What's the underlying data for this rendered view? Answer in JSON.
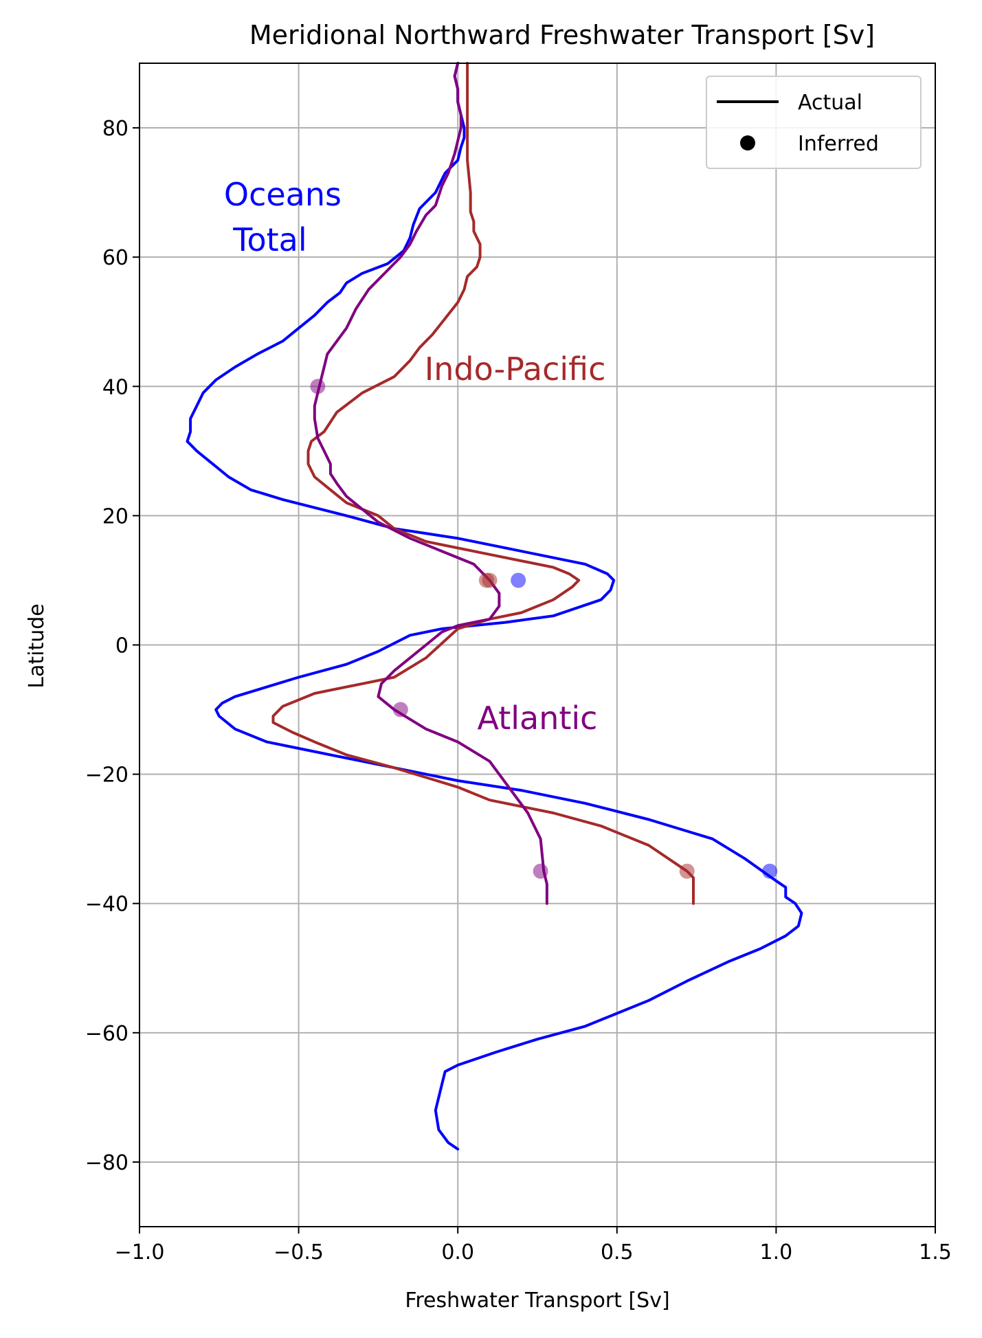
{
  "chart_data": {
    "type": "line",
    "title": "Meridional Northward Freshwater Transport [Sv]",
    "xlabel": "Freshwater Transport [Sv]",
    "ylabel": "Latitude",
    "xlim": [
      -1.0,
      1.5
    ],
    "ylim": [
      -90,
      90
    ],
    "xticks": [
      -1.0,
      -0.5,
      0.0,
      0.5,
      1.0,
      1.5
    ],
    "xtick_labels": [
      "−1.0",
      "−0.5",
      "0.0",
      "0.5",
      "1.0",
      "1.5"
    ],
    "yticks": [
      -80,
      -60,
      -40,
      -20,
      0,
      20,
      40,
      60,
      80
    ],
    "ytick_labels": [
      "−80",
      "−60",
      "−40",
      "−20",
      "0",
      "20",
      "40",
      "60",
      "80"
    ],
    "grid": true,
    "legend": {
      "placement": "top-right",
      "entries": [
        {
          "label": "Actual",
          "marker": "line"
        },
        {
          "label": "Inferred",
          "marker": "dot"
        }
      ]
    },
    "annotations": [
      {
        "text": "Oceans",
        "x": -0.55,
        "y": 68,
        "color": "#0000ff"
      },
      {
        "text": "Total",
        "x": -0.59,
        "y": 61,
        "color": "#0000ff"
      },
      {
        "text": "Indo-Pacific",
        "x": 0.18,
        "y": 41,
        "color": "#a52a2a"
      },
      {
        "text": "Atlantic",
        "x": 0.25,
        "y": -13,
        "color": "#800080"
      }
    ],
    "series": [
      {
        "color": "#0000ff",
        "points": [
          [
            0.0,
            -78
          ],
          [
            -0.03,
            -77
          ],
          [
            -0.06,
            -75
          ],
          [
            -0.07,
            -72
          ],
          [
            -0.06,
            -70
          ],
          [
            -0.05,
            -68
          ],
          [
            -0.04,
            -66
          ],
          [
            0.0,
            -65
          ],
          [
            0.12,
            -63
          ],
          [
            0.25,
            -61
          ],
          [
            0.4,
            -59
          ],
          [
            0.5,
            -57
          ],
          [
            0.6,
            -55
          ],
          [
            0.72,
            -52
          ],
          [
            0.85,
            -49
          ],
          [
            0.95,
            -47
          ],
          [
            1.03,
            -45
          ],
          [
            1.07,
            -43.5
          ],
          [
            1.08,
            -41.5
          ],
          [
            1.06,
            -40
          ],
          [
            1.03,
            -39
          ],
          [
            1.03,
            -37.5
          ],
          [
            1.0,
            -36.5
          ],
          [
            0.9,
            -33
          ],
          [
            0.8,
            -30
          ],
          [
            0.6,
            -27
          ],
          [
            0.4,
            -24.5
          ],
          [
            0.2,
            -22.5
          ],
          [
            0.0,
            -21
          ],
          [
            -0.2,
            -19
          ],
          [
            -0.4,
            -17
          ],
          [
            -0.5,
            -16
          ],
          [
            -0.6,
            -15
          ],
          [
            -0.7,
            -13
          ],
          [
            -0.75,
            -11
          ],
          [
            -0.76,
            -10
          ],
          [
            -0.74,
            -9
          ],
          [
            -0.7,
            -8
          ],
          [
            -0.6,
            -6.5
          ],
          [
            -0.5,
            -5
          ],
          [
            -0.35,
            -3
          ],
          [
            -0.25,
            -1
          ],
          [
            -0.15,
            1.5
          ],
          [
            -0.05,
            2.5
          ],
          [
            0.05,
            3
          ],
          [
            0.15,
            3.5
          ],
          [
            0.3,
            4.5
          ],
          [
            0.45,
            7
          ],
          [
            0.48,
            8.5
          ],
          [
            0.49,
            10
          ],
          [
            0.47,
            11
          ],
          [
            0.4,
            12.5
          ],
          [
            0.2,
            14.5
          ],
          [
            0.0,
            16.5
          ],
          [
            -0.2,
            18
          ],
          [
            -0.35,
            20
          ],
          [
            -0.55,
            22.5
          ],
          [
            -0.65,
            24
          ],
          [
            -0.72,
            26
          ],
          [
            -0.77,
            28
          ],
          [
            -0.82,
            30
          ],
          [
            -0.85,
            31.5
          ],
          [
            -0.84,
            33
          ],
          [
            -0.84,
            35
          ],
          [
            -0.82,
            37
          ],
          [
            -0.8,
            39
          ],
          [
            -0.76,
            41
          ],
          [
            -0.7,
            43
          ],
          [
            -0.63,
            45
          ],
          [
            -0.55,
            47
          ],
          [
            -0.5,
            49
          ],
          [
            -0.45,
            51
          ],
          [
            -0.41,
            53
          ],
          [
            -0.37,
            54.5
          ],
          [
            -0.35,
            56
          ],
          [
            -0.3,
            57.5
          ],
          [
            -0.22,
            59
          ],
          [
            -0.17,
            61
          ],
          [
            -0.15,
            63
          ],
          [
            -0.14,
            65
          ],
          [
            -0.12,
            67.5
          ],
          [
            -0.07,
            70
          ],
          [
            -0.04,
            73
          ],
          [
            0.0,
            75
          ],
          [
            0.01,
            77
          ],
          [
            0.02,
            78.5
          ],
          [
            0.02,
            80
          ],
          [
            0.01,
            82
          ],
          [
            0.0,
            84
          ],
          [
            0.0,
            86
          ],
          [
            -0.01,
            88
          ],
          [
            0.0,
            90
          ]
        ]
      },
      {
        "color": "#a52a2a",
        "points": [
          [
            0.74,
            -40
          ],
          [
            0.74,
            -36
          ],
          [
            0.72,
            -35
          ],
          [
            0.6,
            -31
          ],
          [
            0.45,
            -28
          ],
          [
            0.3,
            -26
          ],
          [
            0.1,
            -24
          ],
          [
            0.0,
            -22
          ],
          [
            -0.2,
            -19
          ],
          [
            -0.35,
            -17
          ],
          [
            -0.45,
            -15
          ],
          [
            -0.52,
            -13.5
          ],
          [
            -0.58,
            -12
          ],
          [
            -0.58,
            -11
          ],
          [
            -0.55,
            -9.5
          ],
          [
            -0.45,
            -7.5
          ],
          [
            -0.3,
            -6
          ],
          [
            -0.2,
            -5
          ],
          [
            -0.1,
            -2
          ],
          [
            0.0,
            2.5
          ],
          [
            0.1,
            4
          ],
          [
            0.2,
            5
          ],
          [
            0.3,
            7
          ],
          [
            0.36,
            9
          ],
          [
            0.38,
            10
          ],
          [
            0.35,
            11
          ],
          [
            0.3,
            12
          ],
          [
            0.1,
            14
          ],
          [
            -0.1,
            16
          ],
          [
            -0.2,
            18
          ],
          [
            -0.25,
            20
          ],
          [
            -0.35,
            22
          ],
          [
            -0.4,
            24
          ],
          [
            -0.45,
            26
          ],
          [
            -0.47,
            28
          ],
          [
            -0.47,
            30
          ],
          [
            -0.46,
            31.5
          ],
          [
            -0.42,
            33
          ],
          [
            -0.38,
            36
          ],
          [
            -0.3,
            39
          ],
          [
            -0.2,
            41.5
          ],
          [
            -0.15,
            44
          ],
          [
            -0.12,
            46
          ],
          [
            -0.08,
            48
          ],
          [
            -0.04,
            50.5
          ],
          [
            0.0,
            53
          ],
          [
            0.02,
            55
          ],
          [
            0.03,
            57
          ],
          [
            0.06,
            58.5
          ],
          [
            0.07,
            60
          ],
          [
            0.07,
            62
          ],
          [
            0.06,
            63
          ],
          [
            0.05,
            64
          ],
          [
            0.05,
            65.5
          ],
          [
            0.04,
            67
          ],
          [
            0.04,
            70
          ],
          [
            0.03,
            75
          ],
          [
            0.03,
            80
          ],
          [
            0.03,
            85
          ],
          [
            0.03,
            90
          ]
        ]
      },
      {
        "color": "#800080",
        "points": [
          [
            0.28,
            -40
          ],
          [
            0.28,
            -37
          ],
          [
            0.27,
            -35
          ],
          [
            0.26,
            -30
          ],
          [
            0.22,
            -26
          ],
          [
            0.16,
            -22
          ],
          [
            0.1,
            -18
          ],
          [
            0.0,
            -15
          ],
          [
            -0.1,
            -13
          ],
          [
            -0.2,
            -10
          ],
          [
            -0.25,
            -8
          ],
          [
            -0.24,
            -6
          ],
          [
            -0.2,
            -4
          ],
          [
            -0.15,
            -2
          ],
          [
            -0.1,
            0
          ],
          [
            -0.05,
            2
          ],
          [
            0.0,
            3
          ],
          [
            0.05,
            3.5
          ],
          [
            0.1,
            4
          ],
          [
            0.13,
            6
          ],
          [
            0.13,
            8
          ],
          [
            0.1,
            10
          ],
          [
            0.08,
            11
          ],
          [
            0.05,
            12.5
          ],
          [
            -0.05,
            14.5
          ],
          [
            -0.15,
            16.5
          ],
          [
            -0.25,
            19
          ],
          [
            -0.3,
            21
          ],
          [
            -0.35,
            23
          ],
          [
            -0.38,
            25
          ],
          [
            -0.4,
            26.5
          ],
          [
            -0.4,
            28
          ],
          [
            -0.42,
            30
          ],
          [
            -0.44,
            32
          ],
          [
            -0.45,
            35
          ],
          [
            -0.45,
            37
          ],
          [
            -0.44,
            39
          ],
          [
            -0.43,
            41
          ],
          [
            -0.42,
            43
          ],
          [
            -0.41,
            45
          ],
          [
            -0.38,
            47
          ],
          [
            -0.35,
            49
          ],
          [
            -0.32,
            52
          ],
          [
            -0.28,
            55
          ],
          [
            -0.22,
            58
          ],
          [
            -0.18,
            60
          ],
          [
            -0.15,
            62
          ],
          [
            -0.13,
            64
          ],
          [
            -0.1,
            66.5
          ],
          [
            -0.07,
            68
          ],
          [
            -0.05,
            71
          ],
          [
            -0.03,
            73
          ],
          [
            -0.01,
            76
          ],
          [
            0.0,
            78
          ],
          [
            0.01,
            80
          ],
          [
            0.01,
            82
          ],
          [
            0.0,
            84
          ],
          [
            0.0,
            86
          ],
          [
            -0.01,
            88
          ],
          [
            0.0,
            90
          ]
        ]
      }
    ],
    "inferred_points": [
      {
        "x": -0.44,
        "y": 40,
        "color": "#800080"
      },
      {
        "x": 0.09,
        "y": 10,
        "color": "#a52a2a"
      },
      {
        "x": 0.1,
        "y": 10,
        "color": "#a52a2a"
      },
      {
        "x": 0.19,
        "y": 10,
        "color": "#0000ff"
      },
      {
        "x": -0.18,
        "y": -10,
        "color": "#800080"
      },
      {
        "x": 0.26,
        "y": -35,
        "color": "#800080"
      },
      {
        "x": 0.72,
        "y": -35,
        "color": "#a52a2a"
      },
      {
        "x": 0.98,
        "y": -35,
        "color": "#0000ff"
      }
    ]
  }
}
